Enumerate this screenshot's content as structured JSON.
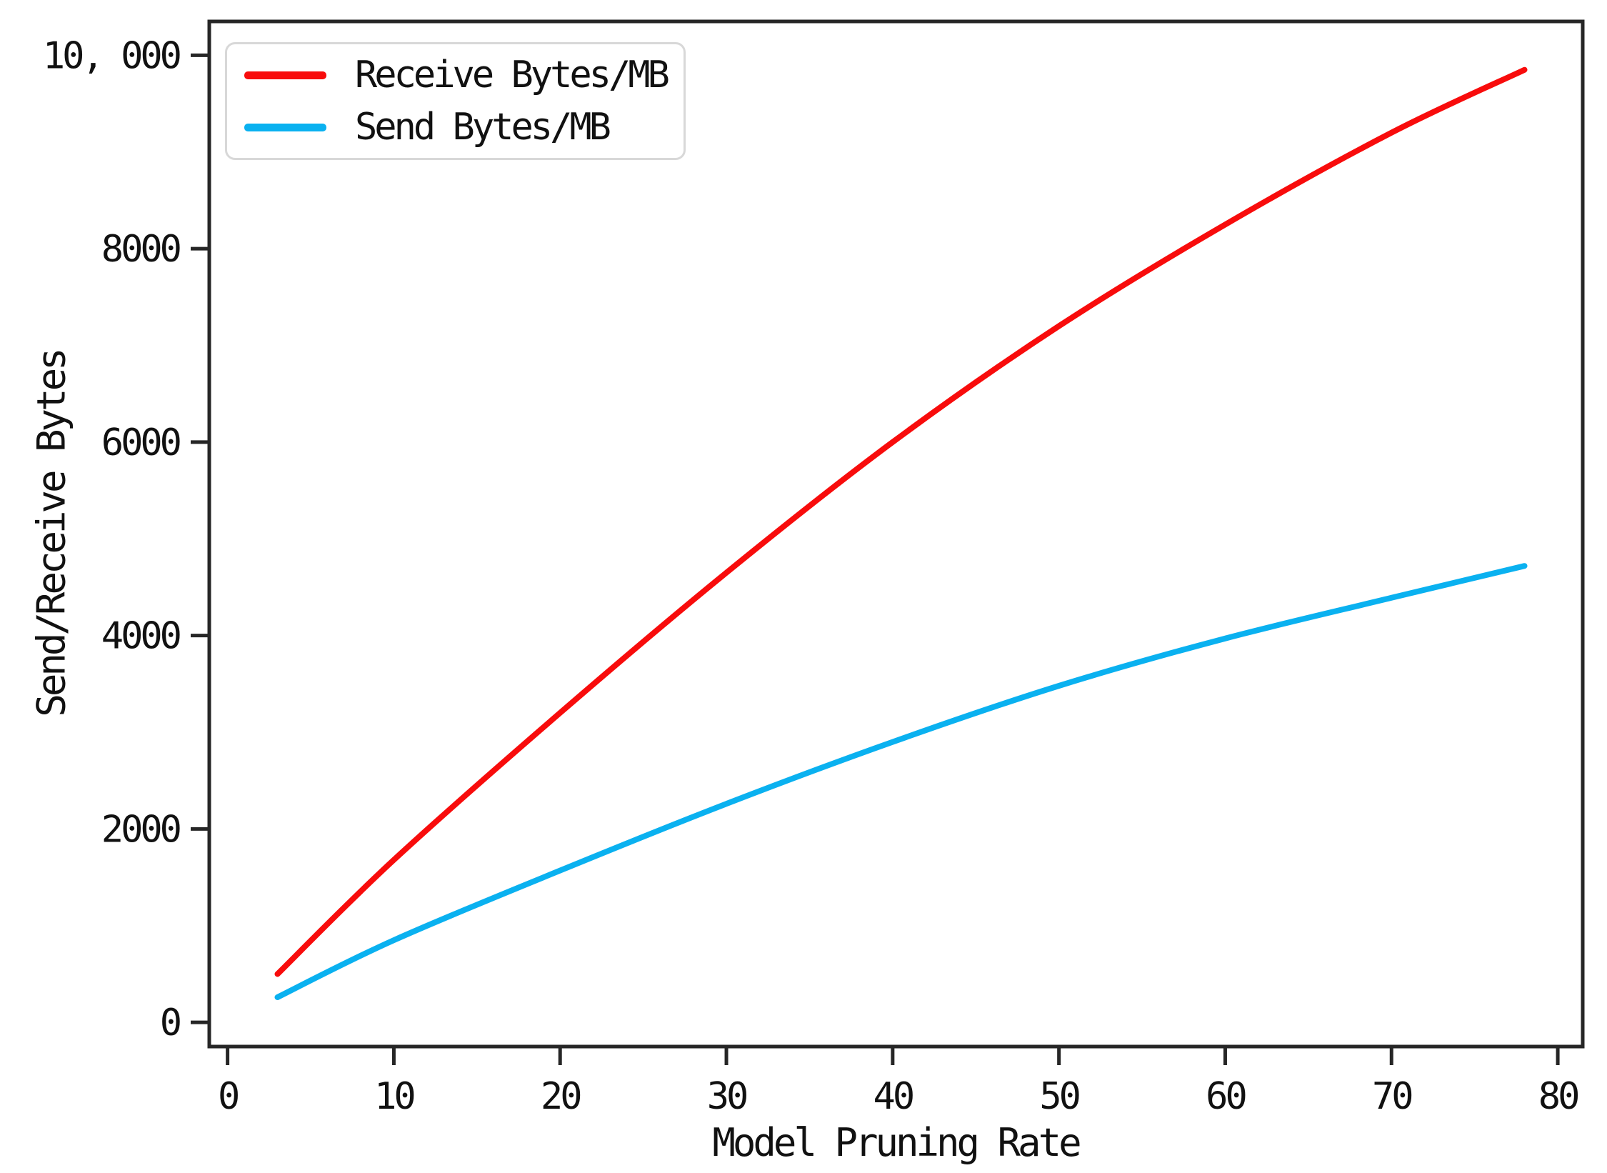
{
  "chart_data": {
    "type": "line",
    "xlabel": "Model Pruning Rate",
    "ylabel": "Send/Receive Bytes",
    "grid": false,
    "background": "#ffffff",
    "spine_color": "#262626",
    "xlim": [
      -1.1,
      81.5
    ],
    "ylim": [
      -250,
      10350
    ],
    "x_ticks": [
      0,
      10,
      20,
      30,
      40,
      50,
      60,
      70,
      80
    ],
    "x_tick_labels": [
      "0",
      "10",
      "20",
      "30",
      "40",
      "50",
      "60",
      "70",
      "80"
    ],
    "y_ticks": [
      0,
      2000,
      4000,
      6000,
      8000,
      10000
    ],
    "y_tick_labels": [
      "0",
      "2000",
      "4000",
      "6000",
      "8000",
      "10, 000"
    ],
    "x": [
      3,
      10,
      20,
      30,
      40,
      50,
      60,
      70,
      78
    ],
    "series": [
      {
        "name": "Receive Bytes/MB",
        "color": "#f80c0c",
        "values": [
          500,
          1680,
          3200,
          4650,
          6000,
          7200,
          8250,
          9200,
          9850
        ]
      },
      {
        "name": "Send Bytes/MB",
        "color": "#0ab1f0",
        "values": [
          260,
          850,
          1570,
          2260,
          2900,
          3480,
          3970,
          4390,
          4720
        ]
      }
    ],
    "legend": {
      "position": "upper-left",
      "border_color": "#d8d8d8"
    }
  }
}
